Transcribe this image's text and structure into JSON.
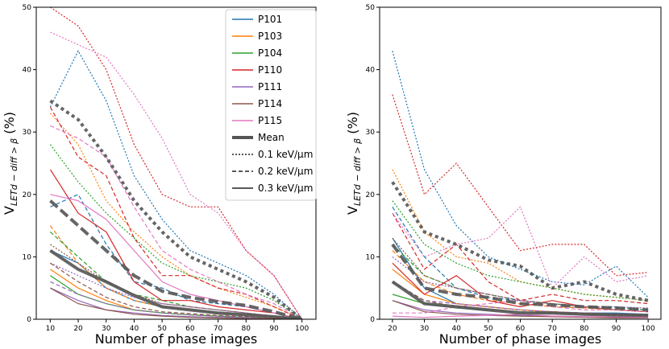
{
  "chart_data": [
    {
      "type": "line",
      "xlabel": "Number of phase images",
      "ylabel_main": "V",
      "ylabel_sub": "LETd − diff > β",
      "ylabel_unit": " (%)",
      "xlim": [
        5,
        105
      ],
      "ylim": [
        0,
        50
      ],
      "xticks": [
        10,
        20,
        30,
        40,
        50,
        60,
        70,
        80,
        90,
        100
      ],
      "yticks": [
        0,
        10,
        20,
        30,
        40,
        50
      ],
      "legend": {
        "position": "top-right",
        "patients": [
          "P101",
          "P103",
          "P104",
          "P110",
          "P111",
          "P114",
          "P115"
        ],
        "mean_label": "Mean",
        "style_labels": [
          "0.1 keV/μm",
          "0.2 keV/μm",
          "0.3 keV/μm"
        ]
      },
      "x": [
        10,
        20,
        30,
        40,
        50,
        60,
        70,
        80,
        90,
        100
      ],
      "series": [
        {
          "name": "P101",
          "threshold": "0.1",
          "values": [
            34,
            43,
            35,
            23,
            16,
            11,
            9,
            7,
            4,
            0
          ]
        },
        {
          "name": "P101",
          "threshold": "0.2",
          "values": [
            18,
            20,
            12,
            6,
            5,
            3,
            2.5,
            2,
            1,
            0
          ]
        },
        {
          "name": "P101",
          "threshold": "0.3",
          "values": [
            11,
            9,
            5,
            3,
            2,
            1.5,
            1,
            0.8,
            0.5,
            0
          ]
        },
        {
          "name": "P103",
          "threshold": "0.1",
          "values": [
            33,
            28,
            19,
            14,
            10,
            7,
            5,
            3.5,
            2,
            0
          ]
        },
        {
          "name": "P103",
          "threshold": "0.2",
          "values": [
            15,
            9,
            5,
            3,
            2,
            1.5,
            1,
            0.7,
            0.4,
            0
          ]
        },
        {
          "name": "P103",
          "threshold": "0.3",
          "values": [
            8,
            5,
            3,
            1.5,
            1,
            0.7,
            0.5,
            0.3,
            0.2,
            0
          ]
        },
        {
          "name": "P104",
          "threshold": "0.1",
          "values": [
            28,
            22,
            17,
            13,
            9,
            7,
            6,
            5,
            3,
            0
          ]
        },
        {
          "name": "P104",
          "threshold": "0.2",
          "values": [
            14,
            10,
            6,
            4,
            3,
            2,
            1.5,
            1,
            0.5,
            0
          ]
        },
        {
          "name": "P104",
          "threshold": "0.3",
          "values": [
            7,
            4,
            2.5,
            1.5,
            1,
            0.7,
            0.5,
            0.3,
            0.2,
            0
          ]
        },
        {
          "name": "P110",
          "threshold": "0.1",
          "values": [
            50,
            47,
            40,
            28,
            20,
            18,
            18,
            11,
            7,
            0
          ]
        },
        {
          "name": "P110",
          "threshold": "0.2",
          "values": [
            34,
            26,
            23,
            13,
            7,
            7,
            5,
            4,
            2,
            0
          ]
        },
        {
          "name": "P110",
          "threshold": "0.3",
          "values": [
            24,
            17,
            14,
            6,
            3,
            3,
            2,
            1.5,
            1,
            0
          ]
        },
        {
          "name": "P111",
          "threshold": "0.1",
          "values": [
            9,
            7,
            5,
            3.5,
            2.5,
            2,
            1.5,
            1,
            0.5,
            0
          ]
        },
        {
          "name": "P111",
          "threshold": "0.2",
          "values": [
            6,
            4,
            2.5,
            1.5,
            1,
            0.7,
            0.5,
            0.3,
            0.2,
            0
          ]
        },
        {
          "name": "P111",
          "threshold": "0.3",
          "values": [
            5,
            3,
            1.5,
            1,
            0.6,
            0.4,
            0.3,
            0.2,
            0.1,
            0
          ]
        },
        {
          "name": "P114",
          "threshold": "0.1",
          "values": [
            12,
            9,
            6,
            4,
            2.5,
            2,
            1.5,
            1,
            0.5,
            0
          ]
        },
        {
          "name": "P114",
          "threshold": "0.2",
          "values": [
            9,
            6,
            3.5,
            2,
            1.2,
            0.9,
            0.6,
            0.4,
            0.2,
            0
          ]
        },
        {
          "name": "P114",
          "threshold": "0.3",
          "values": [
            5,
            2.5,
            1.5,
            0.8,
            0.5,
            0.3,
            0.2,
            0.1,
            0.1,
            0
          ]
        },
        {
          "name": "P115",
          "threshold": "0.1",
          "values": [
            46,
            44,
            42,
            36,
            29,
            20,
            17,
            11,
            7,
            0
          ]
        },
        {
          "name": "P115",
          "threshold": "0.2",
          "values": [
            31,
            29,
            26,
            18,
            11,
            8,
            6,
            4,
            2.5,
            0
          ]
        },
        {
          "name": "P115",
          "threshold": "0.3",
          "values": [
            20,
            19,
            16,
            11,
            6,
            4,
            3,
            2,
            1,
            0
          ]
        },
        {
          "name": "Mean",
          "threshold": "0.1",
          "values": [
            35,
            32,
            26,
            19,
            14,
            10,
            8,
            6,
            3.5,
            0
          ]
        },
        {
          "name": "Mean",
          "threshold": "0.2",
          "values": [
            19,
            15,
            11,
            7,
            4.5,
            3.5,
            2.8,
            2.2,
            1.2,
            0
          ]
        },
        {
          "name": "Mean",
          "threshold": "0.3",
          "values": [
            11,
            8,
            6,
            3.8,
            2,
            1.5,
            1,
            0.7,
            0.4,
            0
          ]
        }
      ]
    },
    {
      "type": "line",
      "xlabel": "Number of phase images",
      "ylabel_main": "V",
      "ylabel_sub": "LETd − diff > β",
      "ylabel_unit": " (%)",
      "xlim": [
        16,
        104
      ],
      "ylim": [
        0,
        50
      ],
      "xticks": [
        20,
        30,
        40,
        50,
        60,
        70,
        80,
        90,
        100
      ],
      "yticks": [
        0,
        10,
        20,
        30,
        40,
        50
      ],
      "x": [
        20,
        30,
        40,
        50,
        60,
        70,
        80,
        90,
        100
      ],
      "series": [
        {
          "name": "P101",
          "threshold": "0.1",
          "values": [
            43,
            24,
            15,
            10,
            8,
            6,
            5.5,
            8.5,
            3.5
          ]
        },
        {
          "name": "P101",
          "threshold": "0.2",
          "values": [
            18,
            10,
            5,
            3.5,
            3,
            2.5,
            2,
            2,
            1.5
          ]
        },
        {
          "name": "P101",
          "threshold": "0.3",
          "values": [
            13,
            5,
            2.5,
            2,
            1.5,
            1.2,
            1,
            1,
            0.8
          ]
        },
        {
          "name": "P103",
          "threshold": "0.1",
          "values": [
            24,
            14,
            10,
            9,
            6,
            5,
            4,
            3.5,
            3
          ]
        },
        {
          "name": "P103",
          "threshold": "0.2",
          "values": [
            11,
            6,
            4,
            3,
            2.5,
            2,
            1.8,
            1.5,
            1.2
          ]
        },
        {
          "name": "P103",
          "threshold": "0.3",
          "values": [
            8,
            4,
            2.5,
            2,
            1.5,
            1.2,
            1,
            0.8,
            0.6
          ]
        },
        {
          "name": "P104",
          "threshold": "0.1",
          "values": [
            19,
            12,
            9,
            7,
            6,
            5,
            4,
            3.5,
            3
          ]
        },
        {
          "name": "P104",
          "threshold": "0.2",
          "values": [
            12,
            7,
            5,
            4,
            3,
            2.5,
            2,
            1.8,
            1.5
          ]
        },
        {
          "name": "P104",
          "threshold": "0.3",
          "values": [
            4,
            2.5,
            1.8,
            1.5,
            1.2,
            1,
            0.8,
            0.7,
            0.6
          ]
        },
        {
          "name": "P110",
          "threshold": "0.1",
          "values": [
            36,
            20,
            25,
            18,
            11,
            12,
            12,
            7,
            7.5
          ]
        },
        {
          "name": "P110",
          "threshold": "0.2",
          "values": [
            17,
            8,
            12,
            6,
            3,
            4,
            3,
            3,
            2.5
          ]
        },
        {
          "name": "P110",
          "threshold": "0.3",
          "values": [
            9,
            4,
            7,
            3,
            2,
            3,
            2,
            1.5,
            1.2
          ]
        },
        {
          "name": "P111",
          "threshold": "0.1",
          "values": [
            10,
            6,
            5,
            4,
            3,
            2.5,
            2,
            2,
            1.8
          ]
        },
        {
          "name": "P111",
          "threshold": "0.2",
          "values": [
            6,
            3,
            2.5,
            2,
            1.5,
            1.2,
            1,
            0.9,
            0.8
          ]
        },
        {
          "name": "P111",
          "threshold": "0.3",
          "values": [
            3,
            1.5,
            1,
            0.8,
            0.6,
            0.5,
            0.4,
            0.3,
            0.3
          ]
        },
        {
          "name": "P114",
          "threshold": "0.1",
          "values": [
            13,
            7,
            5,
            4,
            3,
            2.5,
            2,
            1.5,
            1.2
          ]
        },
        {
          "name": "P114",
          "threshold": "0.2",
          "values": [
            6,
            3,
            2,
            1.5,
            1.2,
            1,
            0.8,
            0.6,
            0.5
          ]
        },
        {
          "name": "P114",
          "threshold": "0.3",
          "values": [
            3,
            1.2,
            0.8,
            0.6,
            0.5,
            0.4,
            0.3,
            0.2,
            0.2
          ]
        },
        {
          "name": "P115",
          "threshold": "0.1",
          "values": [
            17,
            10,
            12,
            13,
            18,
            5,
            10,
            6,
            7
          ]
        },
        {
          "name": "P115",
          "threshold": "0.2",
          "values": [
            1,
            1,
            2,
            2.5,
            3,
            2,
            1.5,
            1.5,
            1.2
          ]
        },
        {
          "name": "P115",
          "threshold": "0.3",
          "values": [
            0.5,
            0.3,
            0.5,
            0.6,
            0.8,
            0.5,
            0.4,
            0.4,
            0.3
          ]
        },
        {
          "name": "Mean",
          "threshold": "0.1",
          "values": [
            22,
            14,
            12,
            9.5,
            8.5,
            5,
            6,
            4,
            3
          ]
        },
        {
          "name": "Mean",
          "threshold": "0.2",
          "values": [
            12,
            5,
            4,
            3.5,
            2.5,
            2.3,
            2,
            1.8,
            1.5
          ]
        },
        {
          "name": "Mean",
          "threshold": "0.3",
          "values": [
            6,
            2.5,
            2,
            1.5,
            1,
            1,
            0.8,
            0.7,
            0.6
          ]
        }
      ]
    }
  ],
  "colors": {
    "P101": "#1f77b4",
    "P103": "#ff7f0e",
    "P104": "#2ca02c",
    "P110": "#d62728",
    "P111": "#9467bd",
    "P114": "#8c564b",
    "P115": "#e377c2",
    "Mean": "#555555"
  }
}
